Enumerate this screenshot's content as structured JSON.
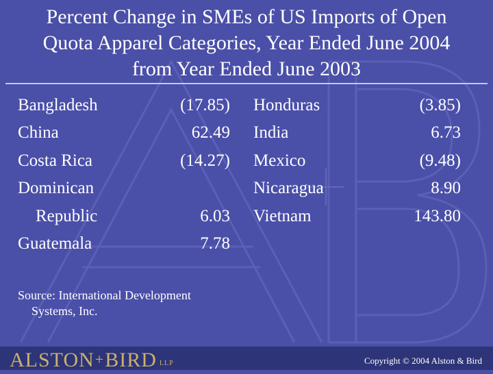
{
  "title": {
    "line1": "Percent Change in SMEs of US Imports of Open",
    "line2": "Quota Apparel Categories, Year Ended June 2004",
    "line3": "from Year Ended June 2003"
  },
  "left_table": {
    "countries": [
      "Bangladesh",
      "China",
      "Costa Rica",
      "Dominican",
      "Republic",
      "Guatemala"
    ],
    "values": [
      "(17.85)",
      "62.49",
      "(14.27)",
      "",
      "6.03",
      "7.78"
    ]
  },
  "right_table": {
    "countries": [
      "Honduras",
      "India",
      "Mexico",
      "Nicaragua",
      "Vietnam"
    ],
    "values": [
      "(3.85)",
      "6.73",
      "(9.48)",
      "8.90",
      "143.80"
    ]
  },
  "source": {
    "line1": "Source: International Development",
    "line2": "Systems, Inc."
  },
  "footer": {
    "logo_left": "ALSTON",
    "logo_plus": "+",
    "logo_right": "BIRD",
    "logo_suffix": "LLP",
    "copyright": "Copyright © 2004 Alston & Bird"
  },
  "colors": {
    "background": "#4a4fa8",
    "footer": "#2d3478",
    "logo_gold": "#c9b26b"
  }
}
